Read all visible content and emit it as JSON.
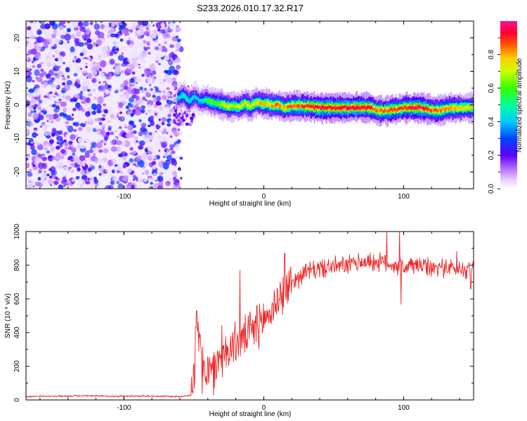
{
  "title": "S233.2026.010.17.32.R17",
  "chart_data": [
    {
      "type": "heatmap",
      "name": "spectrogram",
      "xlabel": "Height of straight line (km)",
      "ylabel": "Frequency (Hz)",
      "xlim": [
        -170,
        150
      ],
      "ylim": [
        -25,
        25
      ],
      "xticks": [
        -100,
        0,
        100
      ],
      "yticks": [
        -20,
        -10,
        0,
        10,
        20
      ],
      "xtick_labels": [
        "-100",
        "0",
        "100"
      ],
      "ytick_labels": [
        "-20",
        "-10",
        "0",
        "10",
        "20"
      ],
      "noise_region_x": [
        -170,
        -62
      ],
      "ridge": {
        "x": [
          -62,
          -58,
          -54,
          -50,
          -46,
          -42,
          -38,
          -34,
          -30,
          -26,
          -22,
          -18,
          -14,
          -10,
          -6,
          -2,
          2,
          6,
          10,
          14,
          20,
          30,
          40,
          50,
          60,
          70,
          76,
          80,
          86,
          90,
          96,
          100,
          106,
          110,
          116,
          120,
          126,
          130,
          136,
          140,
          150
        ],
        "y": [
          2.0,
          3.0,
          1.0,
          2.5,
          1.0,
          1.5,
          0.8,
          0.5,
          0.2,
          -0.5,
          -0.4,
          -0.6,
          0.5,
          -0.5,
          0.8,
          0.4,
          0.3,
          -0.2,
          0.0,
          -0.8,
          -0.3,
          -0.4,
          -0.8,
          -0.8,
          -0.8,
          -0.8,
          -0.8,
          -1.6,
          -1.7,
          -1.5,
          -1.2,
          -0.8,
          -0.8,
          -0.8,
          -1.2,
          -1.6,
          -1.6,
          -1.1,
          -0.9,
          -0.9,
          -0.8
        ],
        "amplitude": [
          0.45,
          0.5,
          0.5,
          0.45,
          0.45,
          0.55,
          0.65,
          0.6,
          0.75,
          0.8,
          0.7,
          0.75,
          0.8,
          0.75,
          0.8,
          0.85,
          0.8,
          0.85,
          0.9,
          0.85,
          0.9,
          0.95,
          1.0,
          1.0,
          1.0,
          1.0,
          0.95,
          0.9,
          0.9,
          0.95,
          0.9,
          0.95,
          1.0,
          1.0,
          0.95,
          0.9,
          0.9,
          0.85,
          0.85,
          0.8,
          0.8
        ]
      },
      "colorbar": {
        "label": "Normalized spectral amplitude",
        "range": [
          0,
          1
        ],
        "ticks": [
          0.0,
          0.2,
          0.4,
          0.6,
          0.8
        ],
        "tick_labels": [
          "0.0",
          "0.2",
          "0.4",
          "0.6",
          "0.8"
        ]
      }
    },
    {
      "type": "line",
      "name": "snr",
      "xlabel": "Height of straight line (km)",
      "ylabel": "SNR (10 * v/v)",
      "xlim": [
        -170,
        150
      ],
      "ylim": [
        0,
        1000
      ],
      "xticks": [
        -100,
        0,
        100
      ],
      "yticks": [
        0,
        200,
        400,
        600,
        800,
        1000
      ],
      "xtick_labels": [
        "-100",
        "0",
        "100"
      ],
      "ytick_labels": [
        "0",
        "200",
        "400",
        "600",
        "800",
        "1000"
      ],
      "series": [
        {
          "name": "SNR",
          "color": "#ee2222",
          "x": [
            -170,
            -150,
            -130,
            -110,
            -90,
            -70,
            -60,
            -52,
            -50,
            -48,
            -45,
            -42,
            -38,
            -34,
            -30,
            -25,
            -20,
            -15,
            -10,
            -5,
            0,
            5,
            10,
            15,
            20,
            30,
            40,
            50,
            60,
            70,
            80,
            90,
            100,
            110,
            120,
            130,
            140,
            150
          ],
          "y": [
            20,
            22,
            24,
            22,
            23,
            22,
            20,
            30,
            150,
            420,
            300,
            200,
            150,
            220,
            260,
            300,
            340,
            360,
            400,
            420,
            480,
            520,
            600,
            640,
            700,
            760,
            780,
            790,
            800,
            820,
            820,
            810,
            790,
            800,
            780,
            790,
            770,
            790
          ],
          "spikes": [
            {
              "x": -48,
              "y": 530
            },
            {
              "x": -44,
              "y": 40
            },
            {
              "x": -36,
              "y": 30
            },
            {
              "x": -30,
              "y": 440
            },
            {
              "x": -17,
              "y": 770
            },
            {
              "x": -5,
              "y": 560
            },
            {
              "x": 15,
              "y": 870
            },
            {
              "x": 88,
              "y": 1000
            },
            {
              "x": 97,
              "y": 1000
            },
            {
              "x": 98,
              "y": 570
            },
            {
              "x": 138,
              "y": 880
            },
            {
              "x": 148,
              "y": 660
            }
          ]
        }
      ]
    }
  ]
}
